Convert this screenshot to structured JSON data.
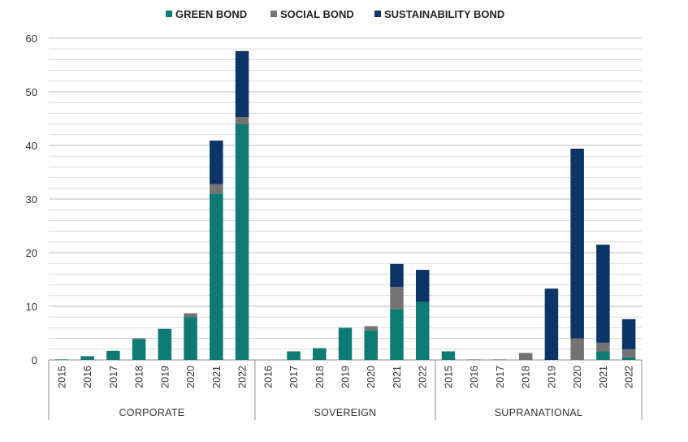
{
  "chart_data": {
    "type": "bar",
    "stacked": true,
    "ylim": [
      0,
      60
    ],
    "yticks": [
      0,
      10,
      20,
      30,
      40,
      50,
      60
    ],
    "grid": true,
    "legend_position": "top",
    "series": [
      {
        "name": "GREEN BOND",
        "color": "#0d7a74"
      },
      {
        "name": "SOCIAL BOND",
        "color": "#737373"
      },
      {
        "name": "SUSTAINABILITY BOND",
        "color": "#0a3566"
      }
    ],
    "groups": [
      {
        "label": "CORPORATE",
        "categories": [
          "2015",
          "2016",
          "2017",
          "2018",
          "2019",
          "2020",
          "2021",
          "2022"
        ],
        "green": [
          0.1,
          0.7,
          1.7,
          3.8,
          5.8,
          8.0,
          31.0,
          44.0
        ],
        "social": [
          0,
          0,
          0,
          0.1,
          0,
          0.7,
          1.8,
          1.3
        ],
        "sustainability": [
          0,
          0,
          0,
          0.1,
          0,
          0,
          8.1,
          12.3
        ]
      },
      {
        "label": "SOVEREIGN",
        "categories": [
          "2016",
          "2017",
          "2018",
          "2019",
          "2020",
          "2021",
          "2022"
        ],
        "green": [
          0,
          1.6,
          2.2,
          6.0,
          5.5,
          9.5,
          10.8
        ],
        "social": [
          0,
          0,
          0,
          0,
          0.8,
          4.1,
          0
        ],
        "sustainability": [
          0,
          0,
          0,
          0,
          0,
          4.3,
          6.0
        ]
      },
      {
        "label": "SUPRANATIONAL",
        "categories": [
          "2015",
          "2016",
          "2017",
          "2018",
          "2019",
          "2020",
          "2021",
          "2022"
        ],
        "green": [
          1.6,
          0,
          0,
          0,
          0,
          0,
          1.6,
          0.5
        ],
        "social": [
          0,
          0.1,
          0.1,
          1.3,
          0,
          4.0,
          1.6,
          1.5
        ],
        "sustainability": [
          0,
          0,
          0,
          0,
          13.3,
          35.4,
          18.3,
          5.6
        ]
      }
    ]
  }
}
